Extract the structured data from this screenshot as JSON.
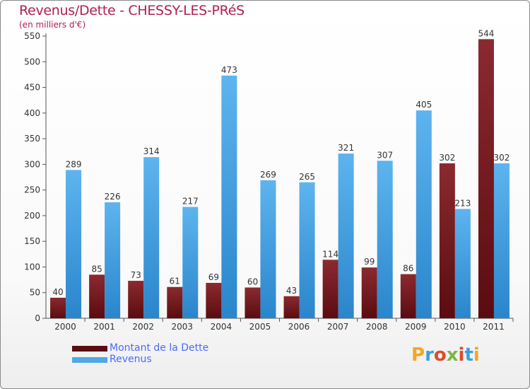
{
  "title": "Revenus/Dette - CHESSY-LES-PRéS",
  "subtitle": "(en milliers d'€)",
  "colors": {
    "dette": "#7a1e22",
    "dette_dark": "#5a0c10",
    "revenus": "#4fa8e6",
    "revenus_dark": "#2a85cc",
    "axis": "#555555",
    "grid": "#dddddd",
    "title": "#b01e50"
  },
  "legend": {
    "dette_label": "Montant de la Dette",
    "revenus_label": "Revenus"
  },
  "logo": {
    "text": "Proxiti",
    "letter_colors": [
      "#f5a623",
      "#3aa1e0",
      "#e04a2a",
      "#7ab648",
      "#e04a2a",
      "#3aa1e0",
      "#f5a623"
    ]
  },
  "chart_data": {
    "type": "bar",
    "title": "Revenus/Dette - CHESSY-LES-PRéS",
    "ylabel": "(en milliers d'€)",
    "xlabel": "",
    "ylim": [
      0,
      550
    ],
    "yticks": [
      0,
      50,
      100,
      150,
      200,
      250,
      300,
      350,
      400,
      450,
      500,
      550
    ],
    "grid": false,
    "legend_position": "bottom-left",
    "categories": [
      "2000",
      "2001",
      "2002",
      "2003",
      "2004",
      "2005",
      "2006",
      "2007",
      "2008",
      "2009",
      "2010",
      "2011"
    ],
    "series": [
      {
        "name": "Montant de la Dette",
        "key": "dette",
        "values": [
          40,
          85,
          73,
          61,
          69,
          60,
          43,
          114,
          99,
          86,
          302,
          544
        ]
      },
      {
        "name": "Revenus",
        "key": "revenus",
        "values": [
          289,
          226,
          314,
          217,
          473,
          269,
          265,
          321,
          307,
          405,
          213,
          302
        ]
      }
    ]
  }
}
